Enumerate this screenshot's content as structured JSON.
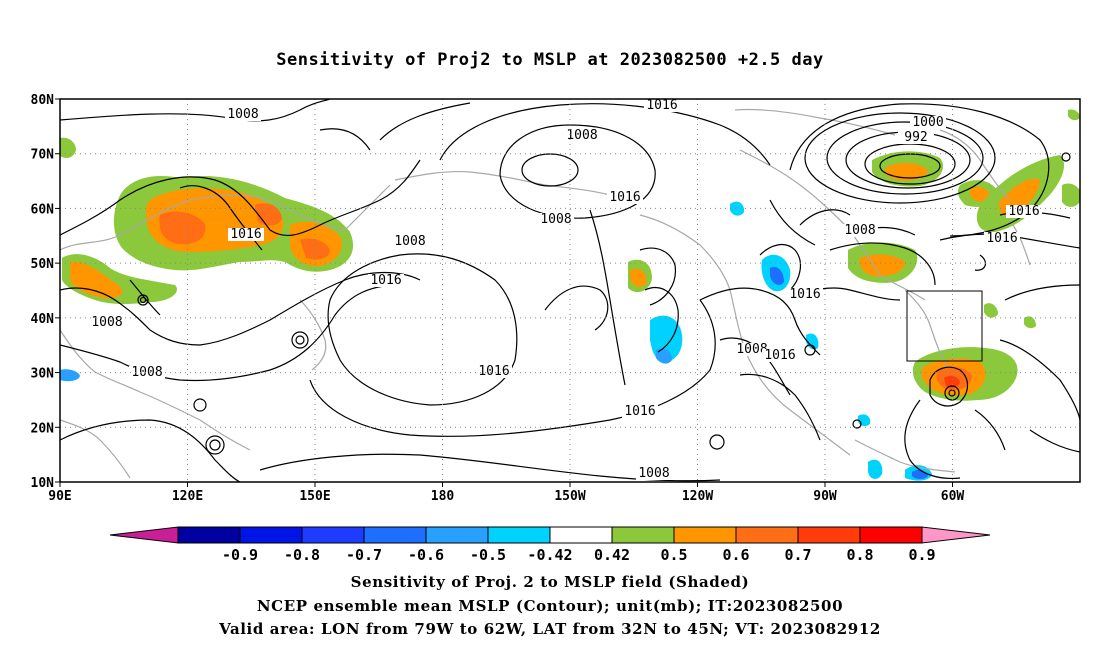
{
  "title": "Sensitivity of Proj2 to MSLP at 2023082500 +2.5 day",
  "lat_labels": [
    "80N",
    "70N",
    "60N",
    "50N",
    "40N",
    "30N",
    "20N",
    "10N"
  ],
  "lon_labels": [
    "90E",
    "120E",
    "150E",
    "180",
    "150W",
    "120W",
    "90W",
    "60W"
  ],
  "contour_labels": [
    "1008",
    "1016",
    "1008",
    "1016",
    "1008",
    "1000",
    "992",
    "1016",
    "1008",
    "1016",
    "1008",
    "1016",
    "1016",
    "1008",
    "1008",
    "1016",
    "1016",
    "1016",
    "1008",
    "1008",
    "1016",
    "1008"
  ],
  "colorbar": {
    "labels": [
      "-0.9",
      "-0.8",
      "-0.7",
      "-0.6",
      "-0.5",
      "-0.42",
      "0.42",
      "0.5",
      "0.6",
      "0.7",
      "0.8",
      "0.9"
    ],
    "colors": [
      "#c81e96",
      "#0000a0",
      "#0014e6",
      "#1e3cff",
      "#1e6eff",
      "#28a0ff",
      "#00d2ff",
      "#ffffff",
      "#8cc83c",
      "#ff9600",
      "#ff6e14",
      "#ff3c0a",
      "#ff0000",
      "#ff96c8"
    ]
  },
  "valid_box": {
    "lon_min": -79,
    "lon_max": -62,
    "lat_min": 32,
    "lat_max": 45
  },
  "captions": [
    "Sensitivity of Proj. 2 to MSLP field (Shaded)",
    "NCEP ensemble mean MSLP (Contour); unit(mb); IT:2023082500",
    "Valid area: LON from 79W to 62W, LAT from 32N to 45N; VT: 2023082912"
  ]
}
